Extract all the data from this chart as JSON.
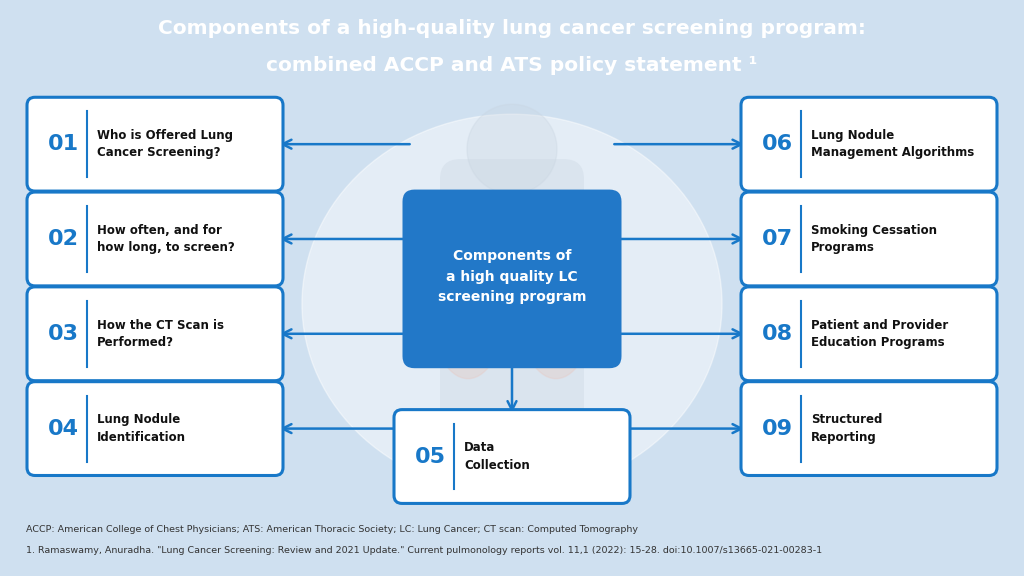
{
  "title_line1": "Components of a high-quality lung cancer screening program:",
  "title_line2": "combined ACCP and ATS policy statement ¹",
  "title_bg": "#1878c8",
  "title_color": "#ffffff",
  "bg_color": "#cfe0f0",
  "center_box_color": "#2278c8",
  "center_box_text_color": "#ffffff",
  "center_text": "Components of\na high quality LC\nscreening program",
  "box_border_color": "#1878c8",
  "box_bg_color": "#ffffff",
  "number_color": "#1878c8",
  "text_color": "#111111",
  "arrow_color": "#1878c8",
  "footer_text1": "ACCP: American College of Chest Physicians; ATS: American Thoracic Society; LC: Lung Cancer; CT scan: Computed Tomography",
  "footer_text2": "1. Ramaswamy, Anuradha. \"Lung Cancer Screening: Review and 2021 Update.\" Current pulmonology reports vol. 11,1 (2022): 15-28. doi:10.1007/s13665-021-00283-1",
  "items_left": [
    {
      "num": "01",
      "text": "Who is Offered Lung\nCancer Screening?"
    },
    {
      "num": "02",
      "text": "How often, and for\nhow long, to screen?"
    },
    {
      "num": "03",
      "text": "How the CT Scan is\nPerformed?"
    },
    {
      "num": "04",
      "text": "Lung Nodule\nIdentification"
    }
  ],
  "items_right": [
    {
      "num": "06",
      "text": "Lung Nodule\nManagement Algorithms"
    },
    {
      "num": "07",
      "text": "Smoking Cessation\nPrograms"
    },
    {
      "num": "08",
      "text": "Patient and Provider\nEducation Programs"
    },
    {
      "num": "09",
      "text": "Structured\nReporting"
    }
  ],
  "item_bottom": {
    "num": "05",
    "text": "Data\nCollection"
  }
}
